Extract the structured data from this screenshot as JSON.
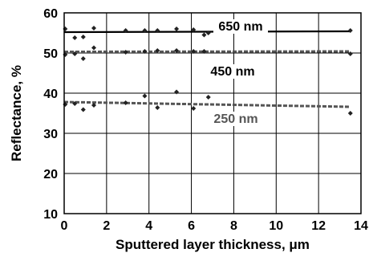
{
  "chart_data": {
    "type": "scatter",
    "title": "",
    "xlabel": "Sputtered layer thickness, μm",
    "ylabel": "Reflectance, %",
    "xlim": [
      0,
      14
    ],
    "ylim": [
      10,
      60
    ],
    "xticks": [
      "0",
      "2",
      "4",
      "6",
      "8",
      "10",
      "12",
      "14"
    ],
    "yticks": [
      "10",
      "20",
      "30",
      "40",
      "50",
      "60"
    ],
    "grid": true,
    "series": [
      {
        "name": "650 nm",
        "color": "#000000",
        "line_style": "solid",
        "trend": [
          [
            0,
            55.2
          ],
          [
            13.5,
            55.4
          ]
        ],
        "points": [
          [
            0.05,
            56.0
          ],
          [
            0.5,
            53.8
          ],
          [
            0.9,
            54.0
          ],
          [
            1.4,
            56.2
          ],
          [
            2.9,
            55.6
          ],
          [
            3.8,
            55.6
          ],
          [
            4.4,
            55.6
          ],
          [
            5.3,
            56.0
          ],
          [
            6.1,
            55.8
          ],
          [
            6.6,
            54.5
          ],
          [
            6.8,
            55.0
          ],
          [
            13.5,
            55.6
          ]
        ]
      },
      {
        "name": "450 nm",
        "color": "#555555",
        "line_style": "dashed",
        "trend": [
          [
            0,
            50.3
          ],
          [
            13.5,
            50.4
          ]
        ],
        "points": [
          [
            0.05,
            49.6
          ],
          [
            0.5,
            49.8
          ],
          [
            0.9,
            48.6
          ],
          [
            1.4,
            51.3
          ],
          [
            2.9,
            50.2
          ],
          [
            3.8,
            50.4
          ],
          [
            4.4,
            50.6
          ],
          [
            5.3,
            50.6
          ],
          [
            6.1,
            50.4
          ],
          [
            6.6,
            50.4
          ],
          [
            13.5,
            49.8
          ]
        ]
      },
      {
        "name": "250 nm",
        "color": "#555555",
        "line_style": "dashed",
        "trend": [
          [
            0,
            37.8
          ],
          [
            13.5,
            36.6
          ]
        ],
        "points": [
          [
            0.05,
            37.2
          ],
          [
            0.5,
            37.4
          ],
          [
            0.9,
            35.9
          ],
          [
            1.4,
            37.0
          ],
          [
            2.9,
            37.6
          ],
          [
            3.8,
            39.3
          ],
          [
            4.4,
            36.4
          ],
          [
            5.3,
            40.3
          ],
          [
            6.1,
            36.2
          ],
          [
            6.8,
            39.0
          ],
          [
            13.5,
            35.0
          ]
        ]
      }
    ]
  }
}
